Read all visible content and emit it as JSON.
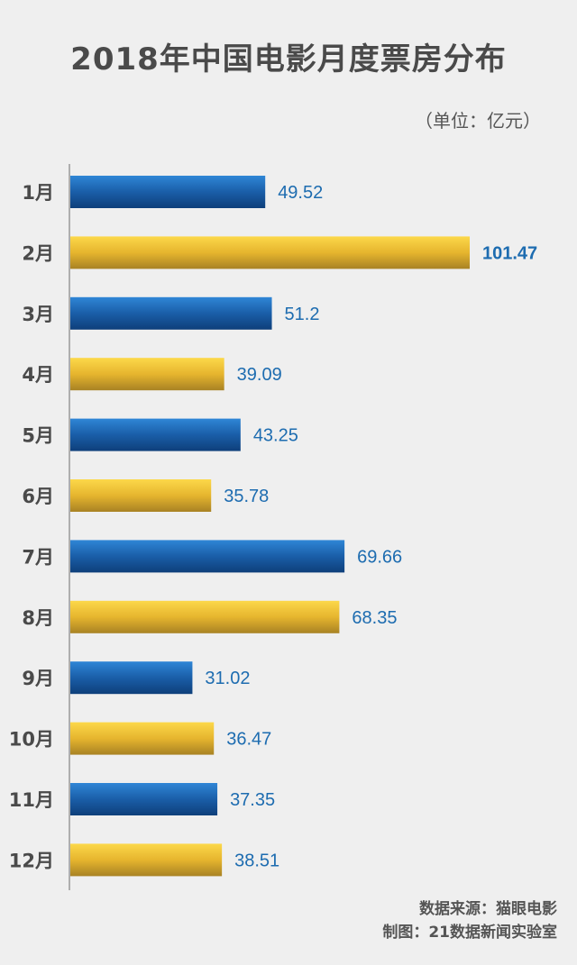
{
  "chart_data": {
    "type": "bar",
    "orientation": "horizontal",
    "title": "2018年中国电影月度票房分布",
    "unit_label": "（单位：亿元）",
    "categories": [
      "1月",
      "2月",
      "3月",
      "4月",
      "5月",
      "6月",
      "7月",
      "8月",
      "9月",
      "10月",
      "11月",
      "12月"
    ],
    "values": [
      49.52,
      101.47,
      51.2,
      39.09,
      43.25,
      35.78,
      69.66,
      68.35,
      31.02,
      36.47,
      37.35,
      38.51
    ],
    "value_labels": [
      "49.52",
      "101.47",
      "51.2",
      "39.09",
      "43.25",
      "35.78",
      "69.66",
      "68.35",
      "31.02",
      "36.47",
      "37.35",
      "38.51"
    ],
    "xlim": [
      0,
      101.47
    ],
    "colors": {
      "blue": "#1a5ea8",
      "gold": "#e6b52e",
      "label": "#1d6cb0",
      "axis": "#999999"
    },
    "color_pattern": [
      "blue",
      "gold",
      "blue",
      "gold",
      "blue",
      "gold",
      "blue",
      "gold",
      "blue",
      "gold",
      "blue",
      "gold"
    ],
    "emphasized_index": 1
  },
  "footer": {
    "source": "数据来源：猫眼电影",
    "made_by": "制图：21数据新闻实验室"
  }
}
